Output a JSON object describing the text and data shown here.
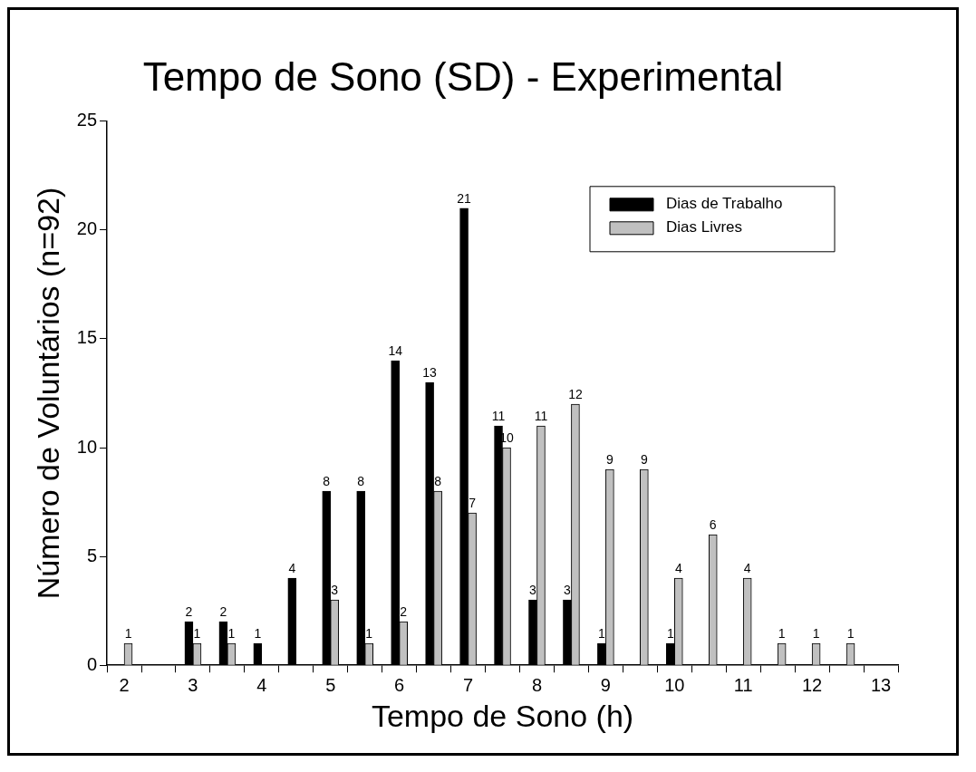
{
  "chart_data": {
    "type": "bar",
    "title": "Tempo de Sono (SD) - Experimental",
    "xlabel": "Tempo de Sono (h)",
    "ylabel": "Número de Voluntários (n=92)",
    "categories": [
      "2",
      null,
      "3",
      null,
      "4",
      null,
      "5",
      null,
      "6",
      null,
      "7",
      null,
      "8",
      null,
      "9",
      null,
      "10",
      null,
      "11",
      null,
      "12",
      null,
      "13"
    ],
    "series": [
      {
        "name": "Dias de Trabalho",
        "color": "#000000",
        "values": [
          null,
          null,
          2,
          2,
          1,
          4,
          8,
          8,
          14,
          13,
          21,
          11,
          3,
          3,
          1,
          null,
          1,
          null,
          null,
          null,
          null,
          null,
          null
        ]
      },
      {
        "name": "Dias Livres",
        "color": "#c0c0c0",
        "values": [
          1,
          null,
          1,
          1,
          null,
          null,
          3,
          1,
          2,
          8,
          7,
          10,
          11,
          12,
          9,
          9,
          4,
          6,
          4,
          1,
          1,
          1,
          null
        ]
      }
    ],
    "ylim": [
      0,
      25
    ],
    "yticks": [
      0,
      5,
      10,
      15,
      20,
      25
    ],
    "grid": false,
    "legend": "top right",
    "data_labels": true
  }
}
